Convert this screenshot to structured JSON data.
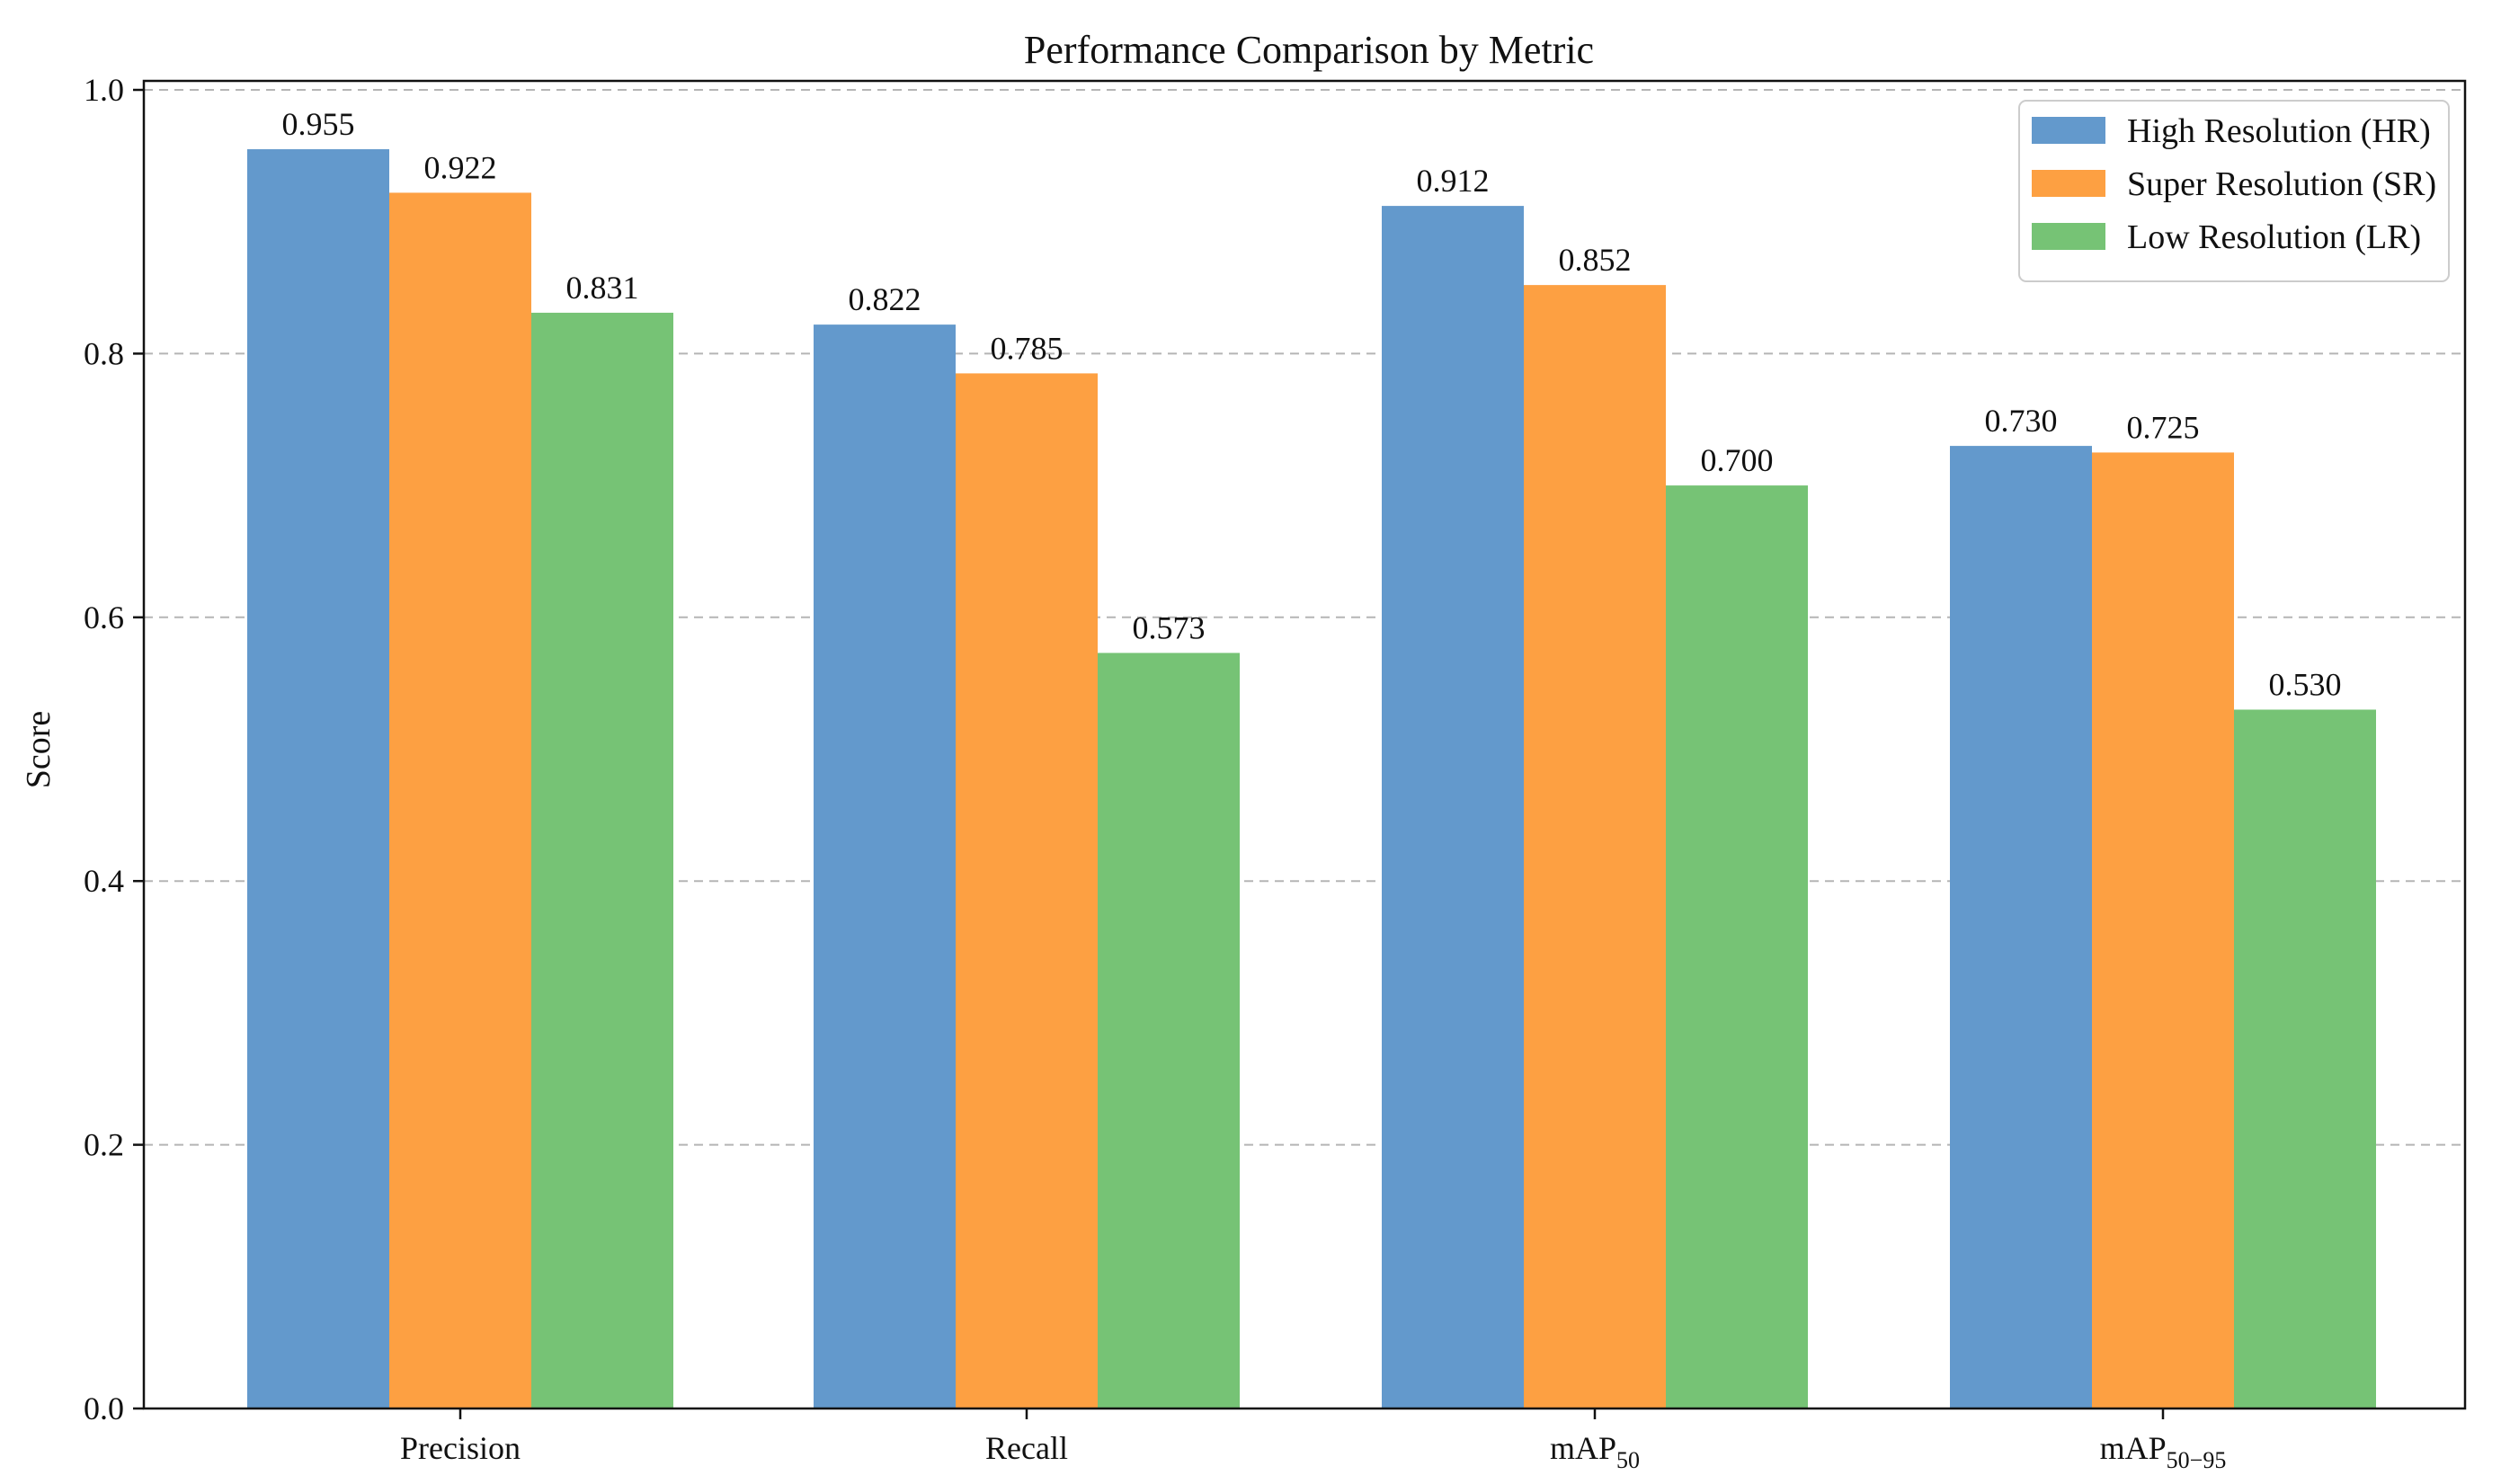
{
  "chart_data": {
    "type": "bar",
    "title": "Performance Comparison by Metric",
    "xlabel": "",
    "ylabel": "Score",
    "ylim": [
      0,
      1.0
    ],
    "yticks": [
      "0.0",
      "0.2",
      "0.4",
      "0.6",
      "0.8",
      "1.0"
    ],
    "categories": [
      {
        "base": "Precision",
        "sub": ""
      },
      {
        "base": "Recall",
        "sub": ""
      },
      {
        "base": "mAP",
        "sub": "50"
      },
      {
        "base": "mAP",
        "sub": "50−95"
      }
    ],
    "series": [
      {
        "name": "High Resolution (HR)",
        "color": "#6399cc",
        "values": [
          0.955,
          0.822,
          0.912,
          0.73
        ],
        "labels": [
          "0.955",
          "0.822",
          "0.912",
          "0.730"
        ]
      },
      {
        "name": "Super Resolution (SR)",
        "color": "#fda042",
        "values": [
          0.922,
          0.785,
          0.852,
          0.725
        ],
        "labels": [
          "0.922",
          "0.785",
          "0.852",
          "0.725"
        ]
      },
      {
        "name": "Low Resolution (LR)",
        "color": "#76c375",
        "values": [
          0.831,
          0.573,
          0.7,
          0.53
        ],
        "labels": [
          "0.831",
          "0.573",
          "0.700",
          "0.530"
        ]
      }
    ],
    "grid": "horizontal-dashed",
    "legend_position": "top-right"
  }
}
